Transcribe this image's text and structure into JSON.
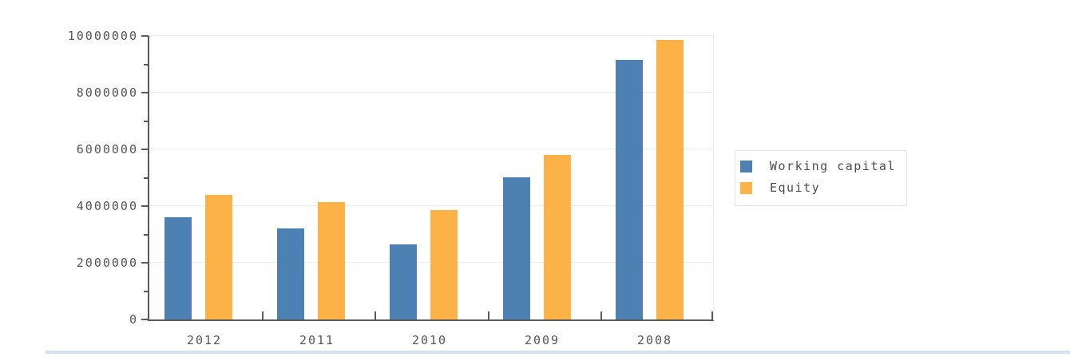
{
  "chart_data": {
    "type": "bar",
    "title": "",
    "xlabel": "",
    "ylabel": "",
    "categories": [
      "2012",
      "2011",
      "2010",
      "2009",
      "2008"
    ],
    "series": [
      {
        "name": "Working capital",
        "color": "#4d81b4",
        "values": [
          3600000,
          3200000,
          2650000,
          5000000,
          9150000
        ]
      },
      {
        "name": "Equity",
        "color": "#fcb246",
        "values": [
          4400000,
          4150000,
          3850000,
          5800000,
          9850000
        ]
      }
    ],
    "ylim": [
      0,
      10000000
    ],
    "yticks": [
      {
        "value": 0,
        "label": "0"
      },
      {
        "value": 2000000,
        "label": "2000000"
      },
      {
        "value": 4000000,
        "label": "4000000"
      },
      {
        "value": 6000000,
        "label": "6000000"
      },
      {
        "value": 8000000,
        "label": "8000000"
      },
      {
        "value": 10000000,
        "label": "10000000"
      }
    ],
    "minor_yticks": [
      1000000,
      3000000,
      5000000,
      7000000,
      9000000
    ],
    "grid": true,
    "legend_position": "right"
  },
  "colors": {
    "axis": "#595a5c",
    "gridline": "#ededed",
    "tick_text": "#555555",
    "scrollbar": "#d7e2ee"
  }
}
